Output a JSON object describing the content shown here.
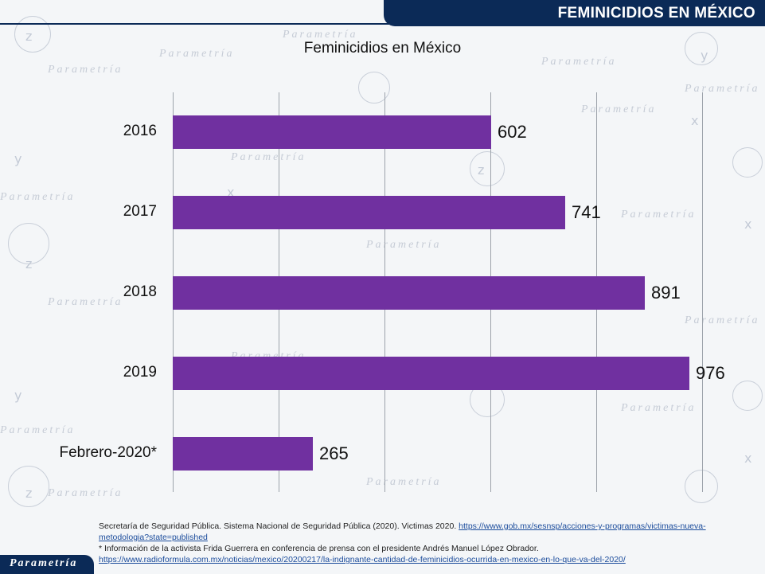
{
  "header": {
    "title": "FEMINICIDIOS EN MÉXICO"
  },
  "watermark": {
    "text": "Parametría"
  },
  "chart_data": {
    "type": "bar",
    "orientation": "horizontal",
    "title": "Feminicidios en México",
    "categories": [
      "2016",
      "2017",
      "2018",
      "2019",
      "Febrero-2020*"
    ],
    "values": [
      602,
      741,
      891,
      976,
      265
    ],
    "xlim": [
      0,
      1000
    ],
    "grid": true,
    "bar_color": "#7030a0"
  },
  "footnotes": {
    "source_text": "Secretaría de Seguridad Pública. Sistema Nacional de Seguridad Pública (2020). Victimas 2020.",
    "source_url": "https://www.gob.mx/sesnsp/acciones-y-programas/victimas-nueva-metodologia?state=published",
    "note_text": "* Información de la activista Frida Guerrera en conferencia de prensa con el presidente Andrés Manuel López Obrador.",
    "note_url": "https://www.radioformula.com.mx/noticias/mexico/20200217/la-indignante-cantidad-de-feminicidios-ocurrida-en-mexico-en-lo-que-va-del-2020/"
  },
  "logo": {
    "text": "Parametría"
  }
}
